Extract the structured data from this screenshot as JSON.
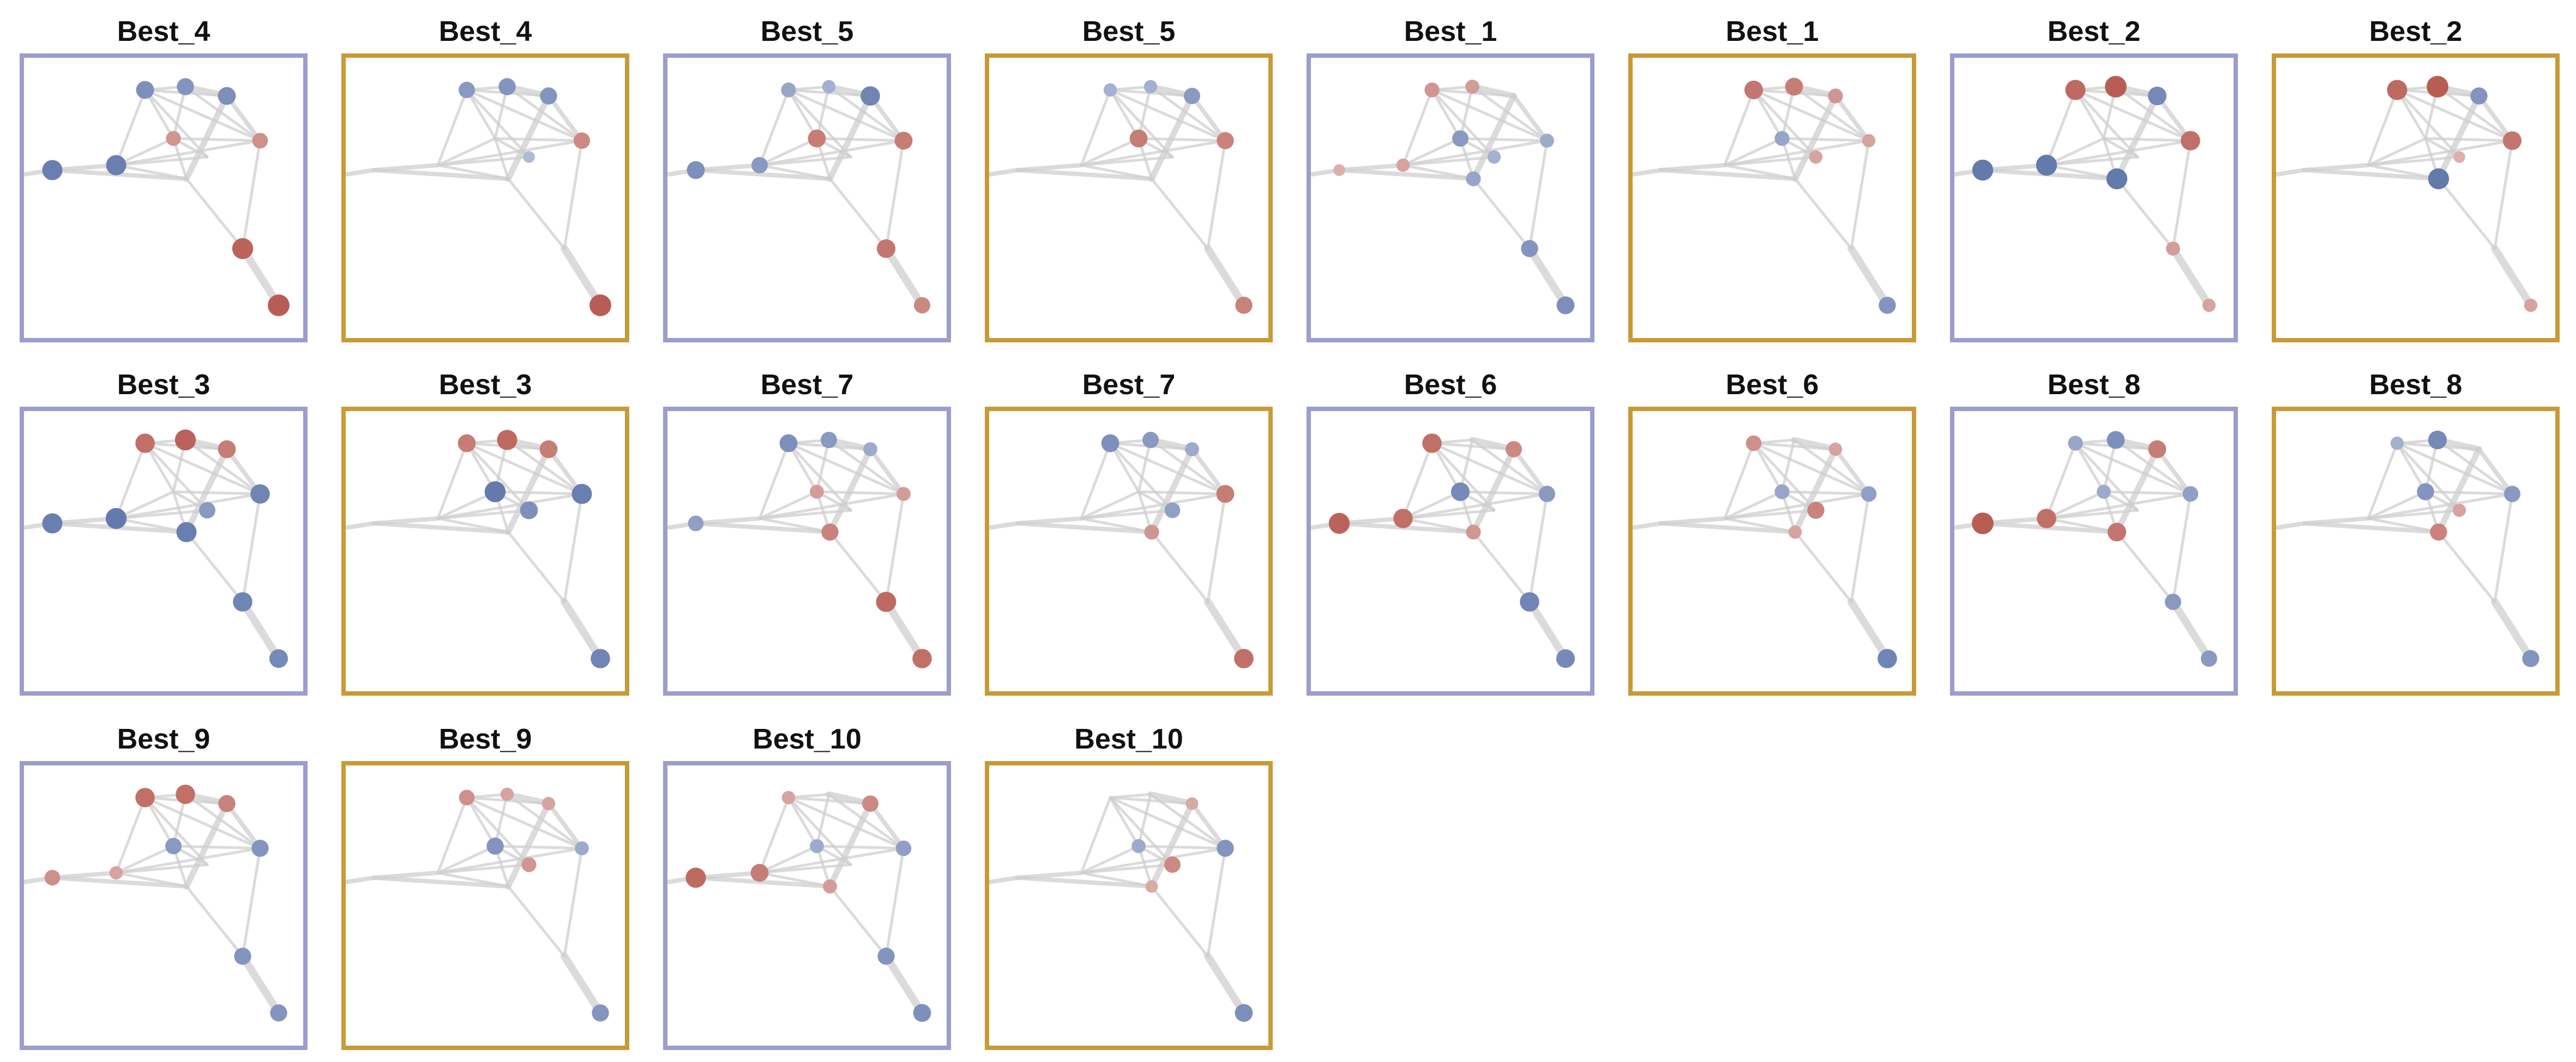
{
  "figure": {
    "colors": {
      "frame_a": "#9b9ccf",
      "frame_b": "#c89a37",
      "edge": "#cfcfcf",
      "positive": "#b04a40",
      "negative": "#4a64a0"
    },
    "graph": {
      "node_ids": [
        "n0",
        "n1",
        "n2",
        "n3",
        "n4",
        "n5",
        "n6",
        "n7",
        "n8",
        "n9",
        "n10"
      ],
      "edges": [
        [
          "n1",
          "n2",
          1
        ],
        [
          "n2",
          "n3",
          1
        ],
        [
          "n2",
          "n4",
          1
        ],
        [
          "n2",
          "n6",
          1
        ],
        [
          "n2",
          "n5",
          1
        ],
        [
          "n3",
          "n4",
          3
        ],
        [
          "n4",
          "n5",
          2
        ],
        [
          "n4",
          "n7",
          3
        ],
        [
          "n3",
          "n6",
          1
        ],
        [
          "n6",
          "n5",
          1
        ],
        [
          "n1",
          "n6",
          1
        ],
        [
          "n1",
          "n7",
          1
        ],
        [
          "n0",
          "n1",
          2
        ],
        [
          "n0",
          "n7",
          2
        ],
        [
          "n6",
          "n7",
          1
        ],
        [
          "n1",
          "n5",
          1
        ],
        [
          "n7",
          "n8",
          1
        ],
        [
          "n5",
          "n8",
          1
        ],
        [
          "n8",
          "n9",
          4
        ],
        [
          "n3",
          "n5",
          1
        ],
        [
          "n2",
          "n10",
          1
        ],
        [
          "n10",
          "n1",
          1
        ],
        [
          "n10",
          "n6",
          1
        ]
      ]
    },
    "panels": [
      {
        "title": "Best_4",
        "frame": "a",
        "nodes": {
          "n0": -0.75,
          "n1": -0.75,
          "n2": -0.6,
          "n3": -0.55,
          "n4": -0.6,
          "n5": 0.45,
          "n6": 0.4,
          "n7": 0,
          "n8": 0.8,
          "n9": 0.85,
          "n10": 0
        }
      },
      {
        "title": "Best_4",
        "frame": "b",
        "nodes": {
          "n0": 0,
          "n1": 0,
          "n2": -0.5,
          "n3": -0.55,
          "n4": -0.55,
          "n5": 0.5,
          "n6": 0,
          "n7": 0,
          "n8": 0,
          "n9": 0.85,
          "n10": -0.2
        }
      },
      {
        "title": "Best_5",
        "frame": "a",
        "nodes": {
          "n0": -0.6,
          "n1": -0.5,
          "n2": -0.4,
          "n3": -0.3,
          "n4": -0.7,
          "n5": 0.6,
          "n6": 0.6,
          "n7": 0,
          "n8": 0.65,
          "n9": 0.5,
          "n10": 0
        }
      },
      {
        "title": "Best_5",
        "frame": "b",
        "nodes": {
          "n0": 0,
          "n1": 0,
          "n2": -0.3,
          "n3": -0.3,
          "n4": -0.5,
          "n5": 0.55,
          "n6": 0.6,
          "n7": 0,
          "n8": 0,
          "n9": 0.55,
          "n10": 0
        }
      },
      {
        "title": "Best_1",
        "frame": "a",
        "nodes": {
          "n0": 0.2,
          "n1": 0.3,
          "n2": 0.4,
          "n3": 0.35,
          "n4": 0,
          "n5": -0.35,
          "n6": -0.5,
          "n7": -0.4,
          "n8": -0.55,
          "n9": -0.6,
          "n10": -0.3
        }
      },
      {
        "title": "Best_1",
        "frame": "b",
        "nodes": {
          "n0": 0,
          "n1": 0,
          "n2": 0.65,
          "n3": 0.6,
          "n4": 0.4,
          "n5": 0.3,
          "n6": -0.4,
          "n7": 0,
          "n8": 0,
          "n9": -0.55,
          "n10": 0.3
        }
      },
      {
        "title": "Best_2",
        "frame": "a",
        "nodes": {
          "n0": -0.8,
          "n1": -0.8,
          "n2": 0.75,
          "n3": 0.85,
          "n4": -0.65,
          "n5": 0.7,
          "n6": 0,
          "n7": -0.8,
          "n8": 0.35,
          "n9": 0.3,
          "n10": 0
        }
      },
      {
        "title": "Best_2",
        "frame": "b",
        "nodes": {
          "n0": 0,
          "n1": 0,
          "n2": 0.75,
          "n3": 0.85,
          "n4": -0.55,
          "n5": 0.65,
          "n6": 0,
          "n7": -0.8,
          "n8": 0,
          "n9": 0.3,
          "n10": 0.2
        }
      },
      {
        "title": "Best_3",
        "frame": "a",
        "nodes": {
          "n0": -0.75,
          "n1": -0.8,
          "n2": 0.7,
          "n3": 0.8,
          "n4": 0.6,
          "n5": -0.7,
          "n6": 0,
          "n7": -0.75,
          "n8": -0.7,
          "n9": -0.65,
          "n10": -0.5
        }
      },
      {
        "title": "Best_3",
        "frame": "b",
        "nodes": {
          "n0": 0,
          "n1": 0,
          "n2": 0.6,
          "n3": 0.75,
          "n4": 0.6,
          "n5": -0.75,
          "n6": -0.8,
          "n7": 0,
          "n8": 0,
          "n9": -0.7,
          "n10": -0.6
        }
      },
      {
        "title": "Best_7",
        "frame": "a",
        "nodes": {
          "n0": -0.45,
          "n1": 0,
          "n2": -0.6,
          "n3": -0.5,
          "n4": -0.35,
          "n5": 0.35,
          "n6": 0.35,
          "n7": 0.55,
          "n8": 0.75,
          "n9": 0.7,
          "n10": 0
        }
      },
      {
        "title": "Best_7",
        "frame": "b",
        "nodes": {
          "n0": 0,
          "n1": 0,
          "n2": -0.6,
          "n3": -0.5,
          "n4": -0.35,
          "n5": 0.6,
          "n6": 0,
          "n7": 0.4,
          "n8": 0,
          "n9": 0.7,
          "n10": -0.45
        }
      },
      {
        "title": "Best_6",
        "frame": "a",
        "nodes": {
          "n0": 0.8,
          "n1": 0.7,
          "n2": 0.7,
          "n3": 0,
          "n4": 0.5,
          "n5": -0.5,
          "n6": -0.65,
          "n7": 0.4,
          "n8": -0.7,
          "n9": -0.65,
          "n10": 0
        }
      },
      {
        "title": "Best_6",
        "frame": "b",
        "nodes": {
          "n0": 0,
          "n1": 0,
          "n2": 0.45,
          "n3": 0,
          "n4": 0.3,
          "n5": -0.45,
          "n6": -0.4,
          "n7": 0.3,
          "n8": 0,
          "n9": -0.7,
          "n10": 0.55
        }
      },
      {
        "title": "Best_8",
        "frame": "a",
        "nodes": {
          "n0": 0.85,
          "n1": 0.7,
          "n2": -0.4,
          "n3": -0.6,
          "n4": 0.6,
          "n5": -0.45,
          "n6": -0.35,
          "n7": 0.65,
          "n8": -0.5,
          "n9": -0.5,
          "n10": 0
        }
      },
      {
        "title": "Best_8",
        "frame": "b",
        "nodes": {
          "n0": 0,
          "n1": 0,
          "n2": -0.3,
          "n3": -0.65,
          "n4": 0,
          "n5": -0.5,
          "n6": -0.55,
          "n7": 0.55,
          "n8": 0,
          "n9": -0.55,
          "n10": 0.3
        }
      },
      {
        "title": "Best_9",
        "frame": "a",
        "nodes": {
          "n0": 0.45,
          "n1": 0.3,
          "n2": 0.7,
          "n3": 0.7,
          "n4": 0.55,
          "n5": -0.55,
          "n6": -0.5,
          "n7": 0,
          "n8": -0.55,
          "n9": -0.55,
          "n10": 0
        }
      },
      {
        "title": "Best_9",
        "frame": "b",
        "nodes": {
          "n0": 0,
          "n1": 0,
          "n2": 0.45,
          "n3": 0.3,
          "n4": 0.3,
          "n5": -0.35,
          "n6": -0.55,
          "n7": 0,
          "n8": 0,
          "n9": -0.55,
          "n10": 0.4
        }
      },
      {
        "title": "Best_10",
        "frame": "a",
        "nodes": {
          "n0": 0.75,
          "n1": 0.6,
          "n2": 0.3,
          "n3": 0,
          "n4": 0.5,
          "n5": -0.45,
          "n6": -0.35,
          "n7": 0.35,
          "n8": -0.55,
          "n9": -0.6,
          "n10": 0
        }
      },
      {
        "title": "Best_10",
        "frame": "b",
        "nodes": {
          "n0": 0,
          "n1": 0,
          "n2": 0,
          "n3": 0,
          "n4": 0.25,
          "n5": -0.55,
          "n6": -0.35,
          "n7": 0.25,
          "n8": 0,
          "n9": -0.6,
          "n10": 0.5
        }
      }
    ]
  }
}
